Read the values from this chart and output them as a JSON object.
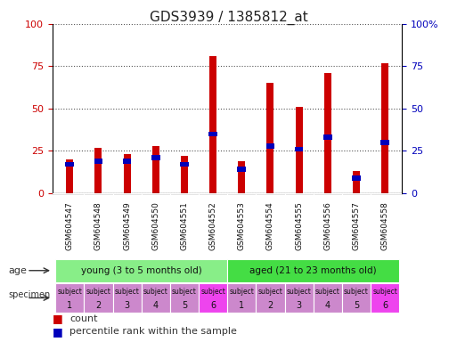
{
  "title": "GDS3939 / 1385812_at",
  "categories": [
    "GSM604547",
    "GSM604548",
    "GSM604549",
    "GSM604550",
    "GSM604551",
    "GSM604552",
    "GSM604553",
    "GSM604554",
    "GSM604555",
    "GSM604556",
    "GSM604557",
    "GSM604558"
  ],
  "count_values": [
    20,
    27,
    23,
    28,
    22,
    81,
    19,
    65,
    51,
    71,
    13,
    77
  ],
  "percentile_values": [
    17,
    19,
    19,
    21,
    17,
    35,
    14,
    28,
    26,
    33,
    9,
    30
  ],
  "bar_color": "#cc0000",
  "percentile_color": "#0000bb",
  "ylim": [
    0,
    100
  ],
  "yticks": [
    0,
    25,
    50,
    75,
    100
  ],
  "ytick_labels_left": [
    "0",
    "25",
    "50",
    "75",
    "100"
  ],
  "ytick_labels_right": [
    "0",
    "25",
    "50",
    "75",
    "100%"
  ],
  "grid_color": "#555555",
  "age_groups": [
    {
      "label": "young (3 to 5 months old)",
      "start": 0,
      "end": 6,
      "color": "#88ee88"
    },
    {
      "label": "aged (21 to 23 months old)",
      "start": 6,
      "end": 12,
      "color": "#44dd44"
    }
  ],
  "specimen_numbers": [
    "1",
    "2",
    "3",
    "4",
    "5",
    "6",
    "1",
    "2",
    "3",
    "4",
    "5",
    "6"
  ],
  "specimen_colors": [
    "#cc88cc",
    "#cc88cc",
    "#cc88cc",
    "#cc88cc",
    "#cc88cc",
    "#ee44ee",
    "#cc88cc",
    "#cc88cc",
    "#cc88cc",
    "#cc88cc",
    "#cc88cc",
    "#ee44ee"
  ],
  "background_color": "#ffffff",
  "xticklabel_bg": "#cccccc",
  "bar_width": 0.25,
  "blue_marker_size": 4,
  "tick_label_fontsize": 8,
  "title_fontsize": 11,
  "legend_fontsize": 8
}
